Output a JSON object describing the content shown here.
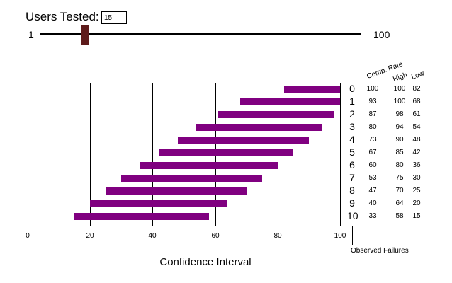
{
  "controls": {
    "users_label": "Users Tested:",
    "users_value": "15",
    "slider_min": "1",
    "slider_max": "100",
    "slider_value": 15
  },
  "table": {
    "header_comp": "Comp. Rate",
    "header_high": "High",
    "header_low": "Low",
    "rows": [
      {
        "failures": "0",
        "comp": "100",
        "high": "100",
        "low": "82"
      },
      {
        "failures": "1",
        "comp": "93",
        "high": "100",
        "low": "68"
      },
      {
        "failures": "2",
        "comp": "87",
        "high": "98",
        "low": "61"
      },
      {
        "failures": "3",
        "comp": "80",
        "high": "94",
        "low": "54"
      },
      {
        "failures": "4",
        "comp": "73",
        "high": "90",
        "low": "48"
      },
      {
        "failures": "5",
        "comp": "67",
        "high": "85",
        "low": "42"
      },
      {
        "failures": "6",
        "comp": "60",
        "high": "80",
        "low": "36"
      },
      {
        "failures": "7",
        "comp": "53",
        "high": "75",
        "low": "30"
      },
      {
        "failures": "8",
        "comp": "47",
        "high": "70",
        "low": "25"
      },
      {
        "failures": "9",
        "comp": "40",
        "high": "64",
        "low": "20"
      },
      {
        "failures": "10",
        "comp": "33",
        "high": "58",
        "low": "15"
      }
    ]
  },
  "chart_data": {
    "type": "bar",
    "subtype": "range",
    "xlabel": "Confidence Interval",
    "ylabel": "Observed Failures",
    "xlim": [
      0,
      100
    ],
    "x_ticks": [
      "0",
      "20",
      "40",
      "60",
      "80",
      "100"
    ],
    "categories": [
      "0",
      "1",
      "2",
      "3",
      "4",
      "5",
      "6",
      "7",
      "8",
      "9",
      "10"
    ],
    "ranges": [
      [
        82,
        100
      ],
      [
        68,
        100
      ],
      [
        61,
        98
      ],
      [
        54,
        94
      ],
      [
        48,
        90
      ],
      [
        42,
        85
      ],
      [
        36,
        80
      ],
      [
        30,
        75
      ],
      [
        25,
        70
      ],
      [
        20,
        64
      ],
      [
        15,
        58
      ]
    ],
    "bar_color": "#800080",
    "grid": "vertical"
  }
}
